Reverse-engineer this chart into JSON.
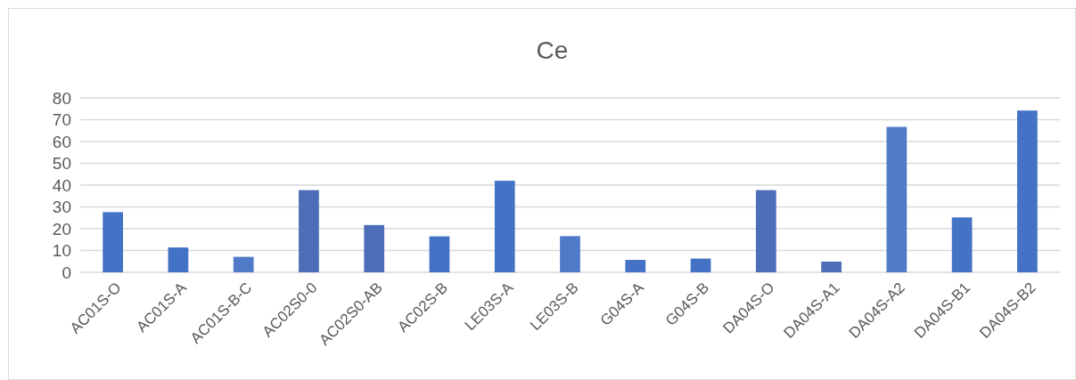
{
  "chart_data": {
    "type": "bar",
    "title": "Ce",
    "categories": [
      "AC01S-O",
      "AC01S-A",
      "AC01S-B-C",
      "AC02S0-0",
      "AC02S0-AB",
      "AC02S-B",
      "LE03S-A",
      "LE03S-B",
      "G04S-A",
      "G04S-B",
      "DA04S-O",
      "DA04S-A1",
      "DA04S-A2",
      "DA04S-B1",
      "DA04S-B2"
    ],
    "values": [
      27.6,
      11.4,
      7.1,
      37.7,
      21.7,
      16.5,
      42,
      16.6,
      5.7,
      6.3,
      37.7,
      4.9,
      66.7,
      25.2,
      74.2
    ],
    "colors": [
      "#4472c4",
      "#4472c4",
      "#4f7ac7",
      "#4e6db8",
      "#4e6db8",
      "#4472c4",
      "#4472c4",
      "#4f7ac7",
      "#4472c4",
      "#4472c4",
      "#4e6db8",
      "#4e6db8",
      "#4f7ac7",
      "#4472c4",
      "#4472c4"
    ],
    "ylim": [
      0,
      80
    ],
    "yticks": [
      0,
      10,
      20,
      30,
      40,
      50,
      60,
      70,
      80
    ],
    "grid": "y"
  }
}
